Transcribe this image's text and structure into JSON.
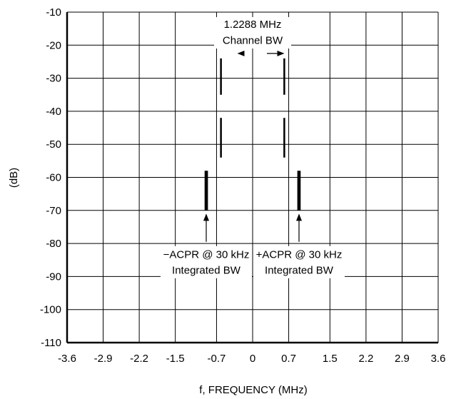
{
  "chart_data": {
    "type": "line",
    "title": "",
    "xlabel": "f, FREQUENCY (MHz)",
    "ylabel": "(dB)",
    "grid": true,
    "xlim": [
      -3.6,
      3.6
    ],
    "ylim": [
      -110,
      -10
    ],
    "x_ticks": [
      -3.6,
      -2.9,
      -2.2,
      -1.5,
      -0.7,
      0,
      0.7,
      1.5,
      2.2,
      2.9,
      3.6
    ],
    "x_tick_labels": [
      "-3.6",
      "-2.9",
      "-2.2",
      "-1.5",
      "-0.7",
      "0",
      "0.7",
      "1.5",
      "2.2",
      "2.9",
      "3.6"
    ],
    "y_ticks": [
      -10,
      -20,
      -30,
      -40,
      -50,
      -60,
      -70,
      -80,
      -90,
      -100,
      -110
    ],
    "y_tick_labels": [
      "-10",
      "-20",
      "-30",
      "-40",
      "-50",
      "-60",
      "-70",
      "-80",
      "-90",
      "-100",
      "-110"
    ],
    "markers": [
      {
        "x": -0.6144,
        "y_from": -24,
        "y_to": -35
      },
      {
        "x": -0.6144,
        "y_from": -42,
        "y_to": -54
      },
      {
        "x": 0.6144,
        "y_from": -24,
        "y_to": -35
      },
      {
        "x": 0.6144,
        "y_from": -42,
        "y_to": -54
      },
      {
        "x": -0.9144,
        "y_from": -58,
        "y_to": -70
      },
      {
        "x": -0.8844,
        "y_from": -58,
        "y_to": -70
      },
      {
        "x": 0.8844,
        "y_from": -58,
        "y_to": -70
      },
      {
        "x": 0.9144,
        "y_from": -58,
        "y_to": -70
      }
    ],
    "annotations": {
      "channel_bw": {
        "line1": "1.2288 MHz",
        "line2": "Channel BW",
        "x_from": -0.6144,
        "x_to": 0.6144,
        "arrow_y": -22.5
      },
      "acpr_minus": {
        "line1": "−ACPR @ 30 kHz",
        "line2": "Integrated BW",
        "arrow_x": -0.9,
        "arrow_from_y": -79.5,
        "arrow_to_y": -71
      },
      "acpr_plus": {
        "line1": "+ACPR @ 30 kHz",
        "line2": "Integrated BW",
        "arrow_x": 0.9,
        "arrow_from_y": -79.5,
        "arrow_to_y": -71
      }
    }
  }
}
